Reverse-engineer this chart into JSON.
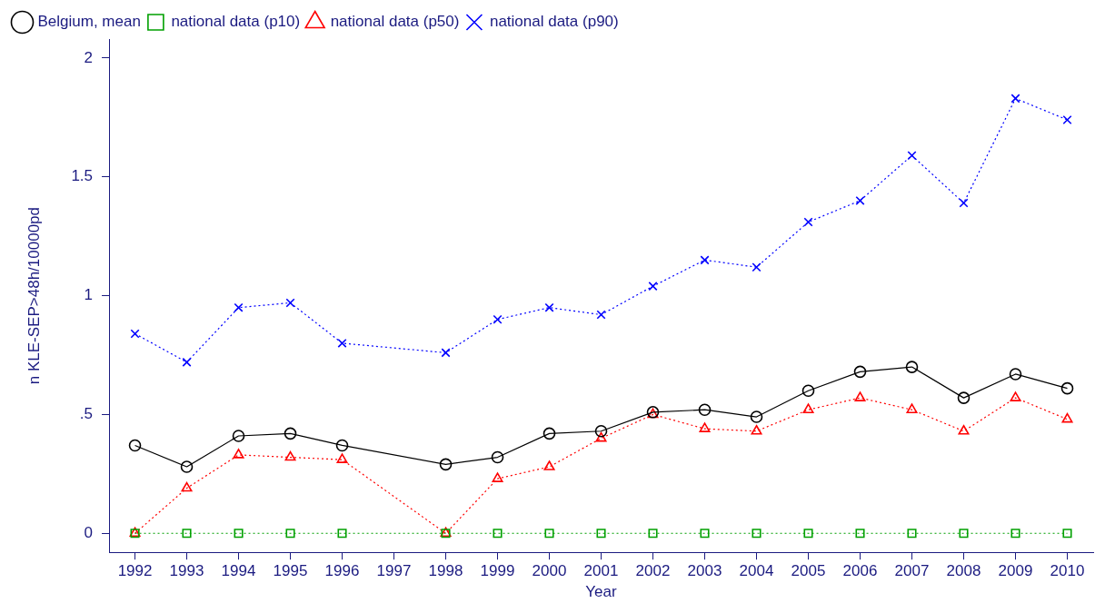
{
  "chart_data": {
    "type": "line",
    "xlabel": "Year",
    "ylabel": "n KLE-SEP>48h/10000pd",
    "x": [
      1992,
      1993,
      1994,
      1995,
      1996,
      1998,
      1999,
      2000,
      2001,
      2002,
      2003,
      2004,
      2005,
      2006,
      2007,
      2008,
      2009,
      2010
    ],
    "series": [
      {
        "name": "Belgium, mean",
        "color": "#000000",
        "marker": "circle",
        "line_style": "solid",
        "values": [
          0.37,
          0.28,
          0.41,
          0.42,
          0.37,
          0.29,
          0.32,
          0.42,
          0.43,
          0.51,
          0.52,
          0.49,
          0.6,
          0.68,
          0.7,
          0.57,
          0.67,
          0.61
        ]
      },
      {
        "name": "national data (p10)",
        "color": "#00a000",
        "marker": "square",
        "line_style": "dotted",
        "values": [
          0,
          0,
          0,
          0,
          0,
          0,
          0,
          0,
          0,
          0,
          0,
          0,
          0,
          0,
          0,
          0,
          0,
          0
        ]
      },
      {
        "name": "national data (p50)",
        "color": "#ff0000",
        "marker": "triangle",
        "line_style": "dotted",
        "values": [
          0,
          0.19,
          0.33,
          0.32,
          0.31,
          0,
          0.23,
          0.28,
          0.4,
          0.5,
          0.44,
          0.43,
          0.52,
          0.57,
          0.52,
          0.43,
          0.57,
          0.48
        ]
      },
      {
        "name": "national data (p90)",
        "color": "#0000ff",
        "marker": "cross",
        "line_style": "dotted",
        "values": [
          0.84,
          0.72,
          0.95,
          0.97,
          0.8,
          0.76,
          0.9,
          0.95,
          0.92,
          1.04,
          1.15,
          1.12,
          1.31,
          1.4,
          1.59,
          1.39,
          1.83,
          1.74
        ]
      }
    ],
    "xlim": [
      1991.5,
      2010.5
    ],
    "xticks": [
      1992,
      1993,
      1994,
      1995,
      1996,
      1997,
      1998,
      1999,
      2000,
      2001,
      2002,
      2003,
      2004,
      2005,
      2006,
      2007,
      2008,
      2009,
      2010
    ],
    "ylim": [
      -0.08,
      2.08
    ],
    "yticks": [
      0,
      {
        "value": 0.5,
        "label": ".5"
      },
      1,
      {
        "value": 1.5,
        "label": "1.5"
      },
      2
    ],
    "grid": false,
    "legend": "top"
  }
}
